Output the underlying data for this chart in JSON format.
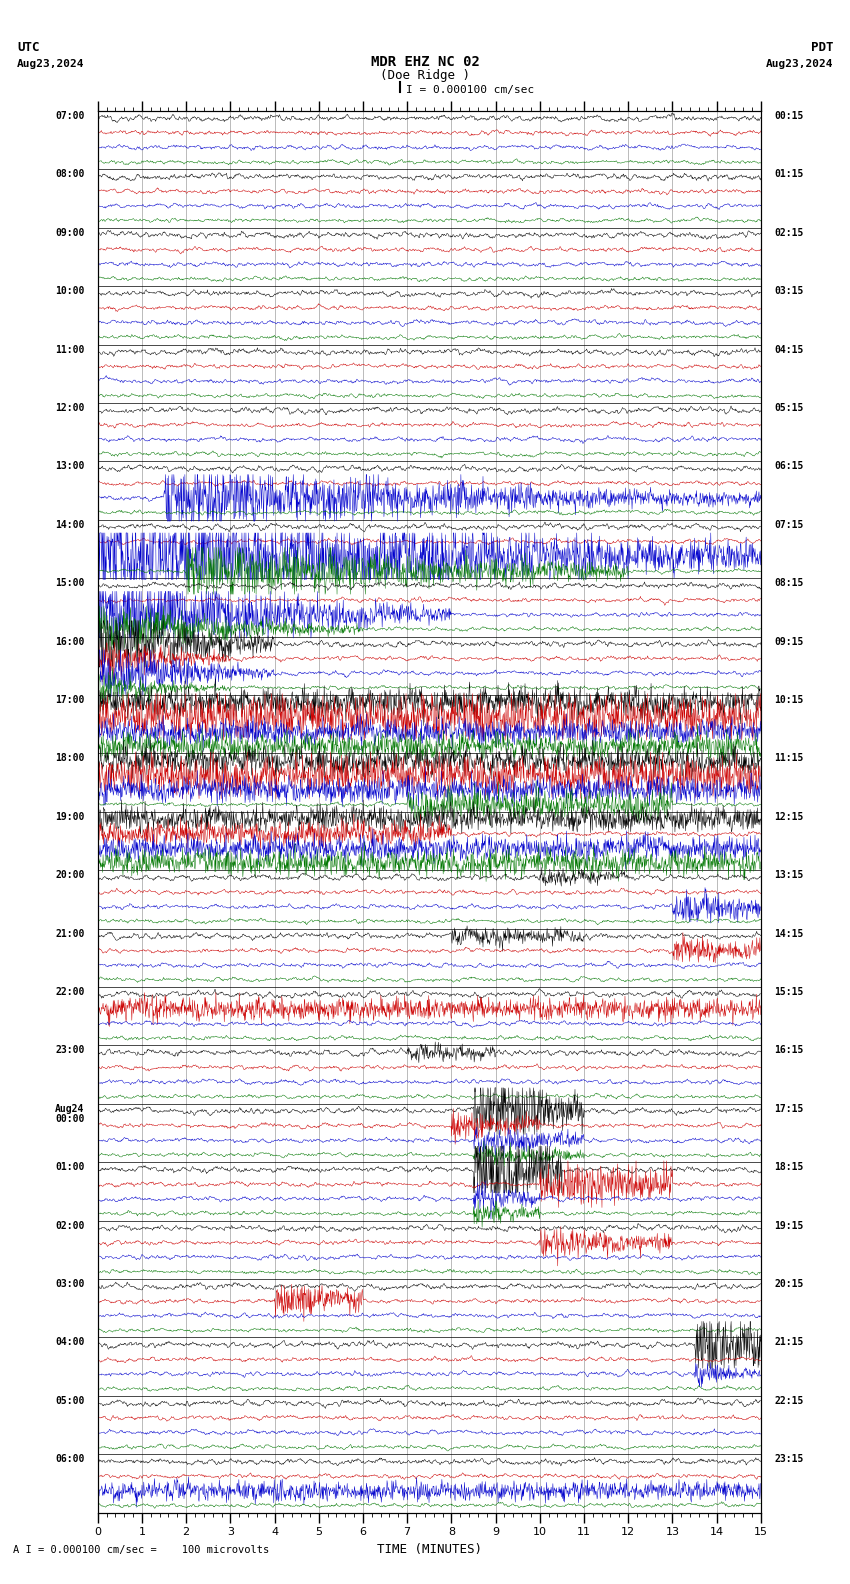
{
  "title_line1": "MDR EHZ NC 02",
  "title_line2": "(Doe Ridge )",
  "scale_label": "I = 0.000100 cm/sec",
  "utc_label": "UTC",
  "utc_date": "Aug23,2024",
  "pdt_label": "PDT",
  "pdt_date": "Aug23,2024",
  "bottom_label": "A I = 0.000100 cm/sec =    100 microvolts",
  "xlabel": "TIME (MINUTES)",
  "xticks": [
    0,
    1,
    2,
    3,
    4,
    5,
    6,
    7,
    8,
    9,
    10,
    11,
    12,
    13,
    14,
    15
  ],
  "utc_times": [
    "07:00",
    "08:00",
    "09:00",
    "10:00",
    "11:00",
    "12:00",
    "13:00",
    "14:00",
    "15:00",
    "16:00",
    "17:00",
    "18:00",
    "19:00",
    "20:00",
    "21:00",
    "22:00",
    "23:00",
    "Aug24\n00:00",
    "01:00",
    "02:00",
    "03:00",
    "04:00",
    "05:00",
    "06:00"
  ],
  "pdt_times": [
    "00:15",
    "01:15",
    "02:15",
    "03:15",
    "04:15",
    "05:15",
    "06:15",
    "07:15",
    "08:15",
    "09:15",
    "10:15",
    "11:15",
    "12:15",
    "13:15",
    "14:15",
    "15:15",
    "16:15",
    "17:15",
    "18:15",
    "19:15",
    "20:15",
    "21:15",
    "22:15",
    "23:15"
  ],
  "n_rows": 24,
  "n_traces": 4,
  "trace_colors": [
    "#000000",
    "#cc0000",
    "#0000cc",
    "#007700"
  ],
  "bg_color": "white",
  "figsize": [
    8.5,
    15.84
  ],
  "dpi": 100,
  "minutes": 15,
  "samples_per_minute": 100
}
